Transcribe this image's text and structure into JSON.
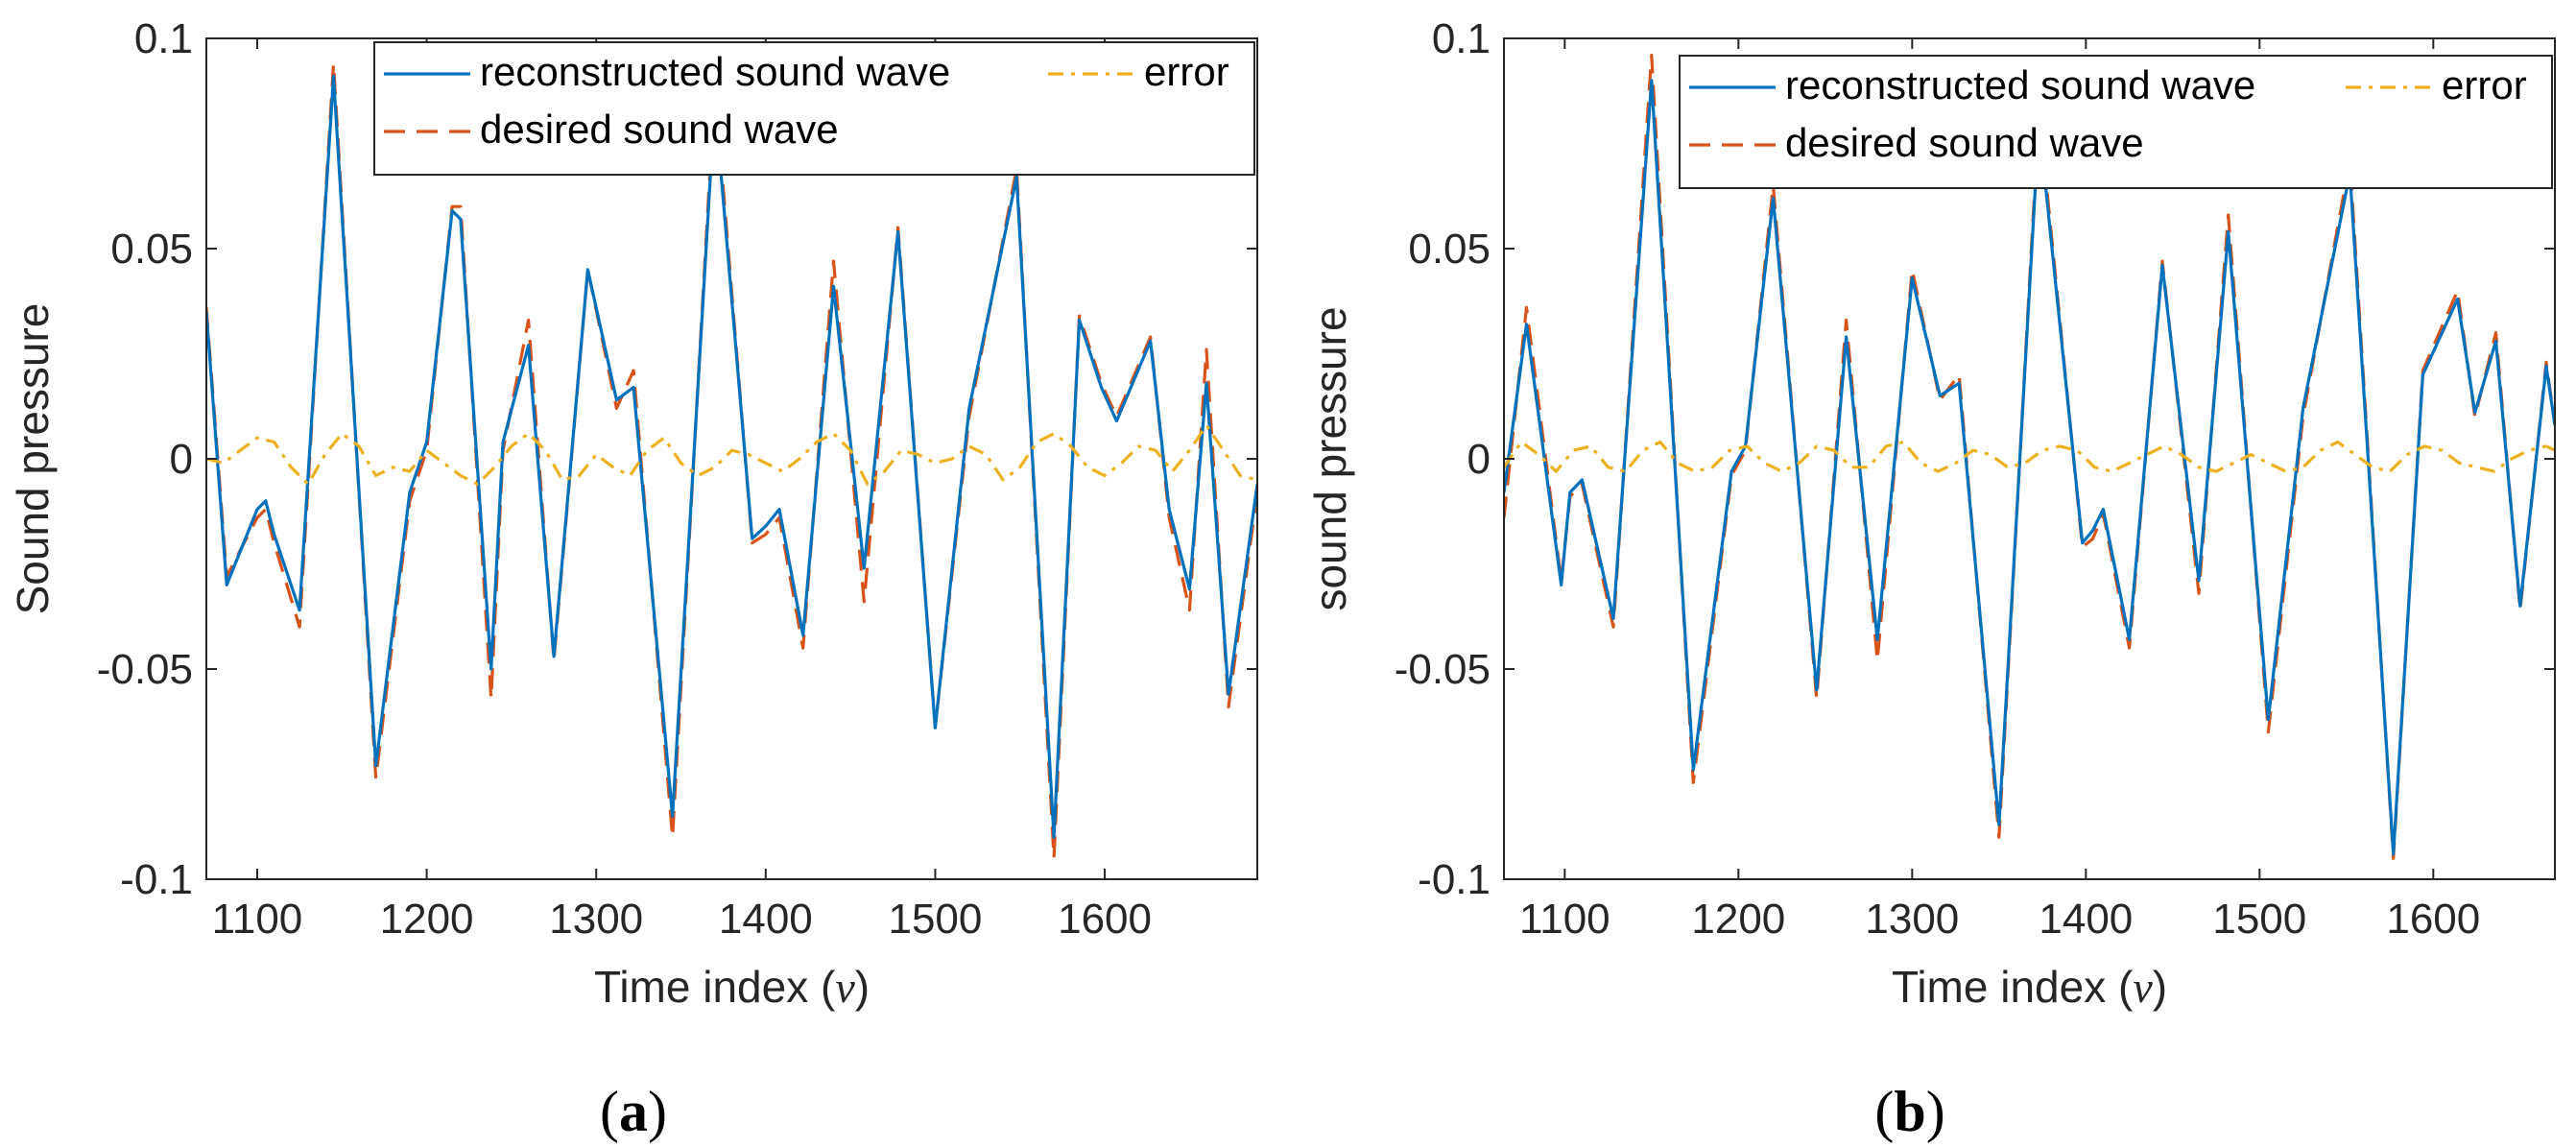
{
  "chart_data": [
    {
      "type": "line",
      "panel_label": "(a)",
      "panel_label_parts": [
        "(",
        "a",
        ")"
      ],
      "xlabel": "Time index (ν)",
      "xlabel_parts": [
        "Time index (",
        "ν",
        ")"
      ],
      "ylabel": "Sound pressure",
      "xlim": [
        1070,
        1690
      ],
      "ylim": [
        -0.1,
        0.1
      ],
      "xticks": [
        1100,
        1200,
        1300,
        1400,
        1500,
        1600
      ],
      "xtick_labels": [
        "1100",
        "1200",
        "1300",
        "1400",
        "1500",
        "1600"
      ],
      "yticks": [
        -0.1,
        -0.05,
        0,
        0.05,
        0.1
      ],
      "ytick_labels": [
        "-0.1",
        "-0.05",
        "0",
        "0.05",
        "0.1"
      ],
      "legend": {
        "position": "top-right",
        "entries": [
          {
            "label": "reconstructed sound wave",
            "style": "solid",
            "color": "#0072BD"
          },
          {
            "label": "error",
            "style": "dashdot",
            "color": "#EDB120"
          },
          {
            "label": "desired sound wave",
            "style": "dashed",
            "color": "#D95319"
          }
        ]
      },
      "series": [
        {
          "name": "desired sound wave",
          "color": "#D95319",
          "style": "dashed",
          "x": [
            1070,
            1082,
            1100,
            1105,
            1110,
            1125,
            1145,
            1170,
            1190,
            1200,
            1215,
            1220,
            1238,
            1245,
            1260,
            1275,
            1295,
            1312,
            1322,
            1345,
            1370,
            1392,
            1400,
            1408,
            1422,
            1440,
            1458,
            1478,
            1500,
            1520,
            1548,
            1570,
            1585,
            1598,
            1607,
            1627,
            1638,
            1650,
            1660,
            1673,
            1690
          ],
          "y": [
            0.036,
            -0.028,
            -0.014,
            -0.012,
            -0.02,
            -0.04,
            0.094,
            -0.076,
            -0.01,
            0.002,
            0.06,
            0.06,
            -0.057,
            0.002,
            0.033,
            -0.048,
            0.045,
            0.012,
            0.021,
            -0.09,
            0.089,
            -0.02,
            -0.018,
            -0.014,
            -0.045,
            0.047,
            -0.034,
            0.055,
            -0.064,
            0.01,
            0.069,
            -0.095,
            0.034,
            0.018,
            0.01,
            0.029,
            -0.014,
            -0.036,
            0.026,
            -0.059,
            -0.008
          ]
        },
        {
          "name": "reconstructed sound wave",
          "color": "#0072BD",
          "style": "solid",
          "x": [
            1070,
            1082,
            1100,
            1105,
            1110,
            1125,
            1145,
            1170,
            1190,
            1200,
            1215,
            1220,
            1238,
            1245,
            1260,
            1275,
            1295,
            1312,
            1322,
            1345,
            1370,
            1392,
            1400,
            1408,
            1422,
            1440,
            1458,
            1478,
            1500,
            1520,
            1548,
            1570,
            1585,
            1598,
            1607,
            1627,
            1638,
            1650,
            1660,
            1673,
            1690
          ],
          "y": [
            0.035,
            -0.03,
            -0.012,
            -0.01,
            -0.018,
            -0.036,
            0.091,
            -0.073,
            -0.008,
            0.004,
            0.059,
            0.057,
            -0.05,
            0.004,
            0.027,
            -0.047,
            0.045,
            0.014,
            0.017,
            -0.085,
            0.085,
            -0.019,
            -0.016,
            -0.012,
            -0.042,
            0.041,
            -0.026,
            0.054,
            -0.064,
            0.012,
            0.067,
            -0.09,
            0.033,
            0.017,
            0.009,
            0.028,
            -0.012,
            -0.031,
            0.018,
            -0.056,
            -0.006
          ]
        },
        {
          "name": "error",
          "color": "#EDB120",
          "style": "dashdot",
          "x": [
            1070,
            1080,
            1090,
            1100,
            1110,
            1120,
            1130,
            1140,
            1150,
            1160,
            1170,
            1180,
            1190,
            1200,
            1210,
            1220,
            1230,
            1240,
            1250,
            1260,
            1270,
            1280,
            1290,
            1300,
            1310,
            1320,
            1330,
            1340,
            1350,
            1360,
            1370,
            1380,
            1390,
            1400,
            1410,
            1420,
            1430,
            1440,
            1450,
            1460,
            1470,
            1480,
            1490,
            1500,
            1510,
            1520,
            1530,
            1540,
            1550,
            1560,
            1570,
            1580,
            1590,
            1600,
            1610,
            1620,
            1630,
            1640,
            1650,
            1660,
            1670,
            1680,
            1690
          ],
          "y": [
            0.0,
            -0.001,
            0.002,
            0.005,
            0.004,
            -0.002,
            -0.006,
            0.001,
            0.006,
            0.003,
            -0.004,
            -0.002,
            -0.003,
            0.002,
            -0.001,
            -0.004,
            -0.006,
            -0.002,
            0.003,
            0.006,
            0.002,
            -0.005,
            -0.004,
            0.001,
            -0.002,
            -0.004,
            0.002,
            0.005,
            -0.001,
            -0.004,
            -0.002,
            0.002,
            0.001,
            -0.001,
            -0.003,
            0.0,
            0.004,
            0.006,
            0.002,
            -0.006,
            -0.003,
            0.002,
            0.001,
            -0.001,
            0.0,
            0.003,
            0.001,
            -0.005,
            -0.002,
            0.004,
            0.006,
            0.003,
            -0.002,
            -0.004,
            -0.001,
            0.003,
            0.002,
            -0.003,
            0.002,
            0.008,
            0.002,
            -0.004,
            -0.005
          ]
        }
      ]
    },
    {
      "type": "line",
      "panel_label": "(b)",
      "panel_label_parts": [
        "(",
        "b",
        ")"
      ],
      "xlabel": "Time index (ν)",
      "xlabel_parts": [
        "Time index (",
        "ν",
        ")"
      ],
      "ylabel": "sound pressure",
      "xlim": [
        1065,
        1670
      ],
      "ylim": [
        -0.1,
        0.1
      ],
      "xticks": [
        1100,
        1200,
        1300,
        1400,
        1500,
        1600
      ],
      "xtick_labels": [
        "1100",
        "1200",
        "1300",
        "1400",
        "1500",
        "1600"
      ],
      "yticks": [
        -0.1,
        -0.05,
        0,
        0.05,
        0.1
      ],
      "ytick_labels": [
        "-0.1",
        "-0.05",
        "0",
        "0.05",
        "0.1"
      ],
      "legend": {
        "position": "top-right",
        "entries": [
          {
            "label": "reconstructed sound wave",
            "style": "solid",
            "color": "#0072BD"
          },
          {
            "label": "error",
            "style": "dashdot",
            "color": "#EDB120"
          },
          {
            "label": "desired sound wave",
            "style": "dashed",
            "color": "#D95319"
          }
        ]
      },
      "series": [
        {
          "name": "desired sound wave",
          "color": "#D95319",
          "style": "dashed",
          "x": [
            1065,
            1078,
            1098,
            1103,
            1110,
            1128,
            1150,
            1174,
            1196,
            1204,
            1220,
            1245,
            1262,
            1280,
            1300,
            1316,
            1327,
            1350,
            1373,
            1398,
            1404,
            1410,
            1425,
            1444,
            1465,
            1482,
            1505,
            1525,
            1552,
            1577,
            1594,
            1614,
            1624,
            1636,
            1650,
            1665,
            1670
          ],
          "y": [
            -0.014,
            0.036,
            -0.029,
            -0.009,
            -0.006,
            -0.04,
            0.096,
            -0.077,
            -0.004,
            0.002,
            0.065,
            -0.057,
            0.033,
            -0.048,
            0.045,
            0.014,
            0.02,
            -0.09,
            0.083,
            -0.021,
            -0.019,
            -0.013,
            -0.045,
            0.047,
            -0.032,
            0.058,
            -0.065,
            0.01,
            0.071,
            -0.095,
            0.021,
            0.04,
            0.01,
            0.03,
            -0.036,
            0.023,
            0.008
          ]
        },
        {
          "name": "reconstructed sound wave",
          "color": "#0072BD",
          "style": "solid",
          "x": [
            1065,
            1078,
            1098,
            1103,
            1110,
            1128,
            1150,
            1174,
            1196,
            1204,
            1220,
            1245,
            1262,
            1280,
            1300,
            1316,
            1327,
            1350,
            1373,
            1398,
            1404,
            1410,
            1425,
            1444,
            1465,
            1482,
            1505,
            1525,
            1552,
            1577,
            1594,
            1614,
            1624,
            1636,
            1650,
            1665,
            1670
          ],
          "y": [
            -0.008,
            0.032,
            -0.03,
            -0.008,
            -0.005,
            -0.038,
            0.09,
            -0.074,
            -0.003,
            0.003,
            0.062,
            -0.055,
            0.029,
            -0.043,
            0.043,
            0.015,
            0.018,
            -0.087,
            0.08,
            -0.02,
            -0.017,
            -0.012,
            -0.043,
            0.046,
            -0.029,
            0.054,
            -0.062,
            0.012,
            0.068,
            -0.094,
            0.02,
            0.038,
            0.011,
            0.028,
            -0.035,
            0.022,
            0.008
          ]
        },
        {
          "name": "error",
          "color": "#EDB120",
          "style": "dashdot",
          "x": [
            1065,
            1075,
            1085,
            1095,
            1105,
            1115,
            1125,
            1135,
            1145,
            1155,
            1165,
            1175,
            1185,
            1195,
            1205,
            1215,
            1225,
            1235,
            1245,
            1255,
            1265,
            1275,
            1285,
            1295,
            1305,
            1315,
            1325,
            1335,
            1345,
            1355,
            1365,
            1375,
            1385,
            1395,
            1405,
            1415,
            1425,
            1435,
            1445,
            1455,
            1465,
            1475,
            1485,
            1495,
            1505,
            1515,
            1525,
            1535,
            1545,
            1555,
            1565,
            1575,
            1585,
            1595,
            1605,
            1615,
            1625,
            1635,
            1645,
            1655,
            1665,
            1670
          ],
          "y": [
            -0.002,
            0.004,
            0.001,
            -0.003,
            0.002,
            0.003,
            -0.002,
            -0.003,
            0.002,
            0.004,
            -0.001,
            -0.003,
            -0.002,
            0.002,
            0.003,
            -0.001,
            -0.003,
            -0.001,
            0.003,
            0.002,
            -0.002,
            -0.002,
            0.003,
            0.004,
            -0.001,
            -0.003,
            -0.001,
            0.002,
            0.001,
            -0.002,
            -0.001,
            0.002,
            0.003,
            0.002,
            -0.002,
            -0.003,
            -0.001,
            0.001,
            0.003,
            0.001,
            -0.002,
            -0.003,
            -0.001,
            0.001,
            -0.001,
            -0.003,
            -0.002,
            0.002,
            0.004,
            0.001,
            -0.002,
            -0.003,
            0.001,
            0.003,
            0.002,
            -0.001,
            -0.002,
            -0.003,
            0.0,
            0.002,
            0.003,
            0.002
          ]
        }
      ]
    }
  ]
}
